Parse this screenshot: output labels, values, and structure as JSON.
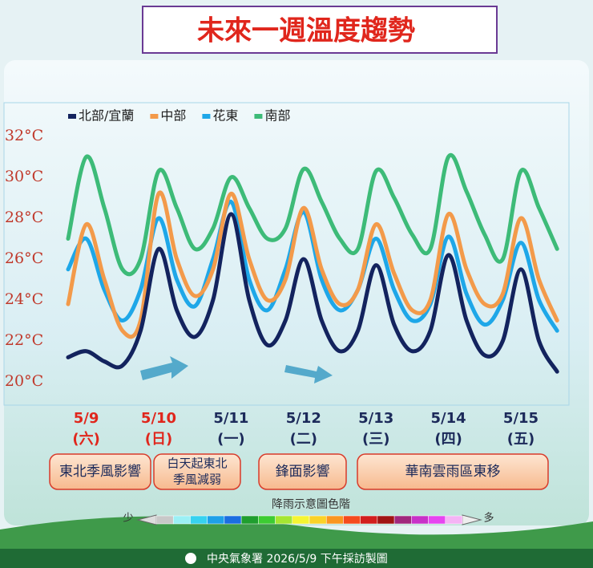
{
  "chart_data": {
    "type": "line",
    "title": "未來一週溫度趨勢",
    "categories": [
      null,
      "5/9",
      null,
      null,
      null,
      "5/10",
      null,
      null,
      null,
      "5/11",
      null,
      null,
      null,
      "5/12",
      null,
      null,
      null,
      "5/13",
      null,
      null,
      null,
      "5/14",
      null,
      null,
      null,
      "5/15",
      null,
      null
    ],
    "weekdays": [
      null,
      "(六)",
      null,
      null,
      null,
      "(日)",
      null,
      null,
      null,
      "(一)",
      null,
      null,
      null,
      "(二)",
      null,
      null,
      null,
      "(三)",
      null,
      null,
      null,
      "(四)",
      null,
      null,
      null,
      "(五)",
      null,
      null
    ],
    "label_colors": [
      null,
      "#e0261c",
      null,
      null,
      null,
      "#e0261c",
      null,
      null,
      null,
      "#1c2a5a",
      null,
      null,
      null,
      "#1c2a5a",
      null,
      null,
      null,
      "#1c2a5a",
      null,
      null,
      null,
      "#1c2a5a",
      null,
      null,
      null,
      "#1c2a5a",
      null,
      null
    ],
    "series": [
      {
        "name": "北部/宜蘭",
        "color": "#13235e",
        "values": [
          21.2,
          21.5,
          21,
          20.8,
          22.5,
          26.5,
          23.5,
          22.2,
          24,
          28.2,
          24,
          21.8,
          23,
          26,
          23,
          21.5,
          22.5,
          25.7,
          22.8,
          21.5,
          22.5,
          26.2,
          23,
          21.3,
          22,
          25.5,
          22,
          20.5
        ]
      },
      {
        "name": "中部",
        "color": "#f39a4a",
        "values": [
          23.8,
          27.7,
          25,
          22.5,
          23,
          29.2,
          26,
          24.2,
          25.5,
          29.2,
          26,
          24,
          25,
          28.5,
          25.5,
          23.8,
          24.5,
          27.7,
          25.3,
          23.5,
          24,
          28.2,
          25.5,
          23.8,
          24.3,
          28,
          25,
          23
        ]
      },
      {
        "name": "花東",
        "color": "#1ea7e8",
        "values": [
          25.5,
          27,
          24.5,
          23,
          24.5,
          28,
          25,
          23.7,
          26,
          28.8,
          25,
          23.5,
          25.5,
          28.3,
          25,
          23.5,
          24.5,
          27,
          24.5,
          23,
          23.8,
          27.1,
          24.3,
          22.8,
          24,
          26.8,
          24,
          22.5
        ]
      },
      {
        "name": "南部",
        "color": "#3dbb78",
        "values": [
          27,
          31,
          28.5,
          25.5,
          26,
          30.3,
          28.5,
          26.5,
          27.5,
          30,
          28.5,
          27,
          27.5,
          30.4,
          28.8,
          27,
          26.5,
          30.3,
          29,
          27.2,
          26.5,
          31,
          29.3,
          27.2,
          26,
          30.3,
          28.5,
          26.5
        ]
      }
    ],
    "ylim": [
      20,
      32
    ],
    "yticks": [
      {
        "value": 20,
        "label": "20°C"
      },
      {
        "value": 22,
        "label": "22°C"
      },
      {
        "value": 24,
        "label": "24°C"
      },
      {
        "value": 26,
        "label": "26°C"
      },
      {
        "value": 28,
        "label": "28°C"
      },
      {
        "value": 30,
        "label": "30°C"
      },
      {
        "value": 32,
        "label": "32°C"
      }
    ],
    "grid": false,
    "annotations": [
      [
        "東北季風影響"
      ],
      [
        "白天起東北",
        "季風減弱"
      ],
      [
        "鋒面影響"
      ],
      [
        "華南雲雨區東移"
      ]
    ],
    "rain_scale": {
      "title": "降雨示意圖色階",
      "low": "少",
      "high": "多",
      "colors": [
        "#c8c8c8",
        "#9bf0f5",
        "#37d2f0",
        "#1ea0e8",
        "#1b6ee0",
        "#1f9e2e",
        "#3ccc32",
        "#a5e632",
        "#f5f532",
        "#fad228",
        "#fa9620",
        "#f54b1e",
        "#d21e1e",
        "#a01414",
        "#a0287d",
        "#c832c8",
        "#e646f0",
        "#f5b4f5"
      ]
    },
    "footer": "中央氣象署 2026/5/9 下午採訪製圖"
  }
}
